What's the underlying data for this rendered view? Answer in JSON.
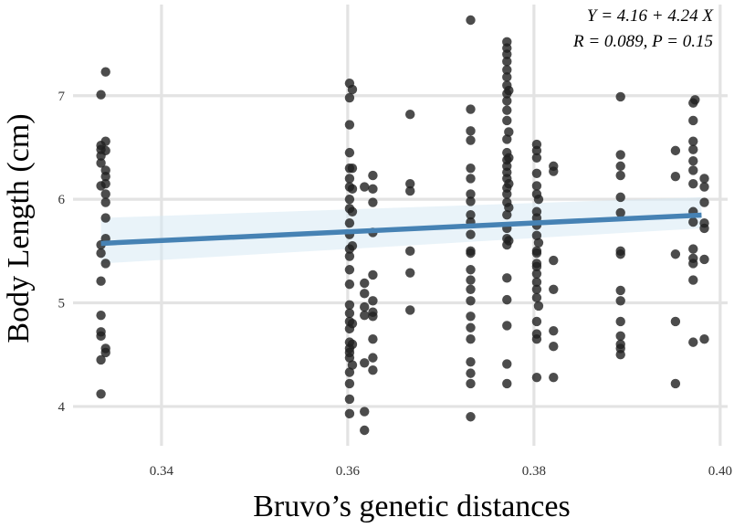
{
  "chart_data": {
    "type": "scatter",
    "title": "",
    "xlabel": "Bruvo’s genetic distances",
    "ylabel": "Body Length (cm)",
    "xlim": [
      0.3305,
      0.4008
    ],
    "ylim": [
      3.62,
      7.88
    ],
    "x_ticks": [
      {
        "value": 0.34,
        "label": "0.34"
      },
      {
        "value": 0.36,
        "label": "0.36"
      },
      {
        "value": 0.38,
        "label": "0.38"
      },
      {
        "value": 0.4,
        "label": "0.40"
      }
    ],
    "y_ticks": [
      {
        "value": 4,
        "label": "4"
      },
      {
        "value": 5,
        "label": "5"
      },
      {
        "value": 6,
        "label": "6"
      },
      {
        "value": 7,
        "label": "7"
      }
    ],
    "grid": true,
    "annotation_lines": [
      "Y = 4.16  + 4.24  X",
      "R = 0.089,  P = 0.15"
    ],
    "regression": {
      "intercept": 4.16,
      "slope": 4.24,
      "x_range": [
        0.3335,
        0.398
      ],
      "ci_left": [
        5.38,
        5.82
      ],
      "ci_right": [
        5.72,
        6.02
      ],
      "color": "#4682b4",
      "band_color": "#d7e9f4"
    },
    "point_color": "#1f1f1f",
    "points": [
      [
        0.3335,
        4.12
      ],
      [
        0.3335,
        4.45
      ],
      [
        0.3335,
        4.68
      ],
      [
        0.3335,
        4.72
      ],
      [
        0.3335,
        4.88
      ],
      [
        0.3335,
        5.21
      ],
      [
        0.3335,
        5.48
      ],
      [
        0.3335,
        5.56
      ],
      [
        0.3335,
        6.13
      ],
      [
        0.3335,
        6.35
      ],
      [
        0.3335,
        6.42
      ],
      [
        0.3335,
        6.48
      ],
      [
        0.3335,
        6.52
      ],
      [
        0.3335,
        7.01
      ],
      [
        0.334,
        4.52
      ],
      [
        0.334,
        4.56
      ],
      [
        0.334,
        5.38
      ],
      [
        0.334,
        5.62
      ],
      [
        0.334,
        5.82
      ],
      [
        0.334,
        5.97
      ],
      [
        0.334,
        6.05
      ],
      [
        0.334,
        6.15
      ],
      [
        0.334,
        6.22
      ],
      [
        0.334,
        6.28
      ],
      [
        0.334,
        6.47
      ],
      [
        0.334,
        6.56
      ],
      [
        0.334,
        7.23
      ],
      [
        0.3602,
        3.93
      ],
      [
        0.3602,
        4.07
      ],
      [
        0.3602,
        4.22
      ],
      [
        0.3602,
        4.33
      ],
      [
        0.3602,
        4.47
      ],
      [
        0.3602,
        4.52
      ],
      [
        0.3602,
        4.56
      ],
      [
        0.3602,
        4.62
      ],
      [
        0.3602,
        4.75
      ],
      [
        0.3602,
        4.82
      ],
      [
        0.3602,
        4.9
      ],
      [
        0.3602,
        4.98
      ],
      [
        0.3602,
        5.18
      ],
      [
        0.3602,
        5.32
      ],
      [
        0.3602,
        5.45
      ],
      [
        0.3602,
        5.52
      ],
      [
        0.3602,
        5.66
      ],
      [
        0.3602,
        5.77
      ],
      [
        0.3602,
        5.91
      ],
      [
        0.3602,
        6.0
      ],
      [
        0.3602,
        6.12
      ],
      [
        0.3602,
        6.2
      ],
      [
        0.3602,
        6.3
      ],
      [
        0.3602,
        6.45
      ],
      [
        0.3602,
        6.72
      ],
      [
        0.3602,
        6.98
      ],
      [
        0.3602,
        7.12
      ],
      [
        0.3605,
        4.4
      ],
      [
        0.3605,
        4.6
      ],
      [
        0.3605,
        4.8
      ],
      [
        0.3605,
        5.55
      ],
      [
        0.3605,
        5.88
      ],
      [
        0.3605,
        6.1
      ],
      [
        0.3605,
        6.3
      ],
      [
        0.3605,
        7.06
      ],
      [
        0.3618,
        3.77
      ],
      [
        0.3618,
        3.95
      ],
      [
        0.3618,
        4.42
      ],
      [
        0.3618,
        4.88
      ],
      [
        0.3618,
        4.96
      ],
      [
        0.3618,
        5.09
      ],
      [
        0.3618,
        5.19
      ],
      [
        0.3618,
        6.12
      ],
      [
        0.3627,
        4.35
      ],
      [
        0.3627,
        4.47
      ],
      [
        0.3627,
        4.65
      ],
      [
        0.3627,
        4.87
      ],
      [
        0.3627,
        4.91
      ],
      [
        0.3627,
        5.02
      ],
      [
        0.3627,
        5.27
      ],
      [
        0.3627,
        5.68
      ],
      [
        0.3627,
        5.97
      ],
      [
        0.3627,
        6.1
      ],
      [
        0.3627,
        6.23
      ],
      [
        0.3667,
        4.93
      ],
      [
        0.3667,
        5.29
      ],
      [
        0.3667,
        5.5
      ],
      [
        0.3667,
        6.08
      ],
      [
        0.3667,
        6.15
      ],
      [
        0.3667,
        6.82
      ],
      [
        0.3732,
        3.9
      ],
      [
        0.3732,
        4.22
      ],
      [
        0.3732,
        4.32
      ],
      [
        0.3732,
        4.43
      ],
      [
        0.3732,
        4.65
      ],
      [
        0.3732,
        4.76
      ],
      [
        0.3732,
        4.87
      ],
      [
        0.3732,
        5.02
      ],
      [
        0.3732,
        5.13
      ],
      [
        0.3732,
        5.22
      ],
      [
        0.3732,
        5.32
      ],
      [
        0.3732,
        5.48
      ],
      [
        0.3732,
        5.5
      ],
      [
        0.3732,
        5.66
      ],
      [
        0.3732,
        5.78
      ],
      [
        0.3732,
        5.85
      ],
      [
        0.3732,
        5.98
      ],
      [
        0.3732,
        6.05
      ],
      [
        0.3732,
        6.2
      ],
      [
        0.3732,
        6.3
      ],
      [
        0.3732,
        6.57
      ],
      [
        0.3732,
        6.66
      ],
      [
        0.3732,
        6.87
      ],
      [
        0.3732,
        7.73
      ],
      [
        0.3771,
        4.22
      ],
      [
        0.3771,
        4.41
      ],
      [
        0.3771,
        4.78
      ],
      [
        0.3771,
        5.03
      ],
      [
        0.3771,
        5.24
      ],
      [
        0.3771,
        5.56
      ],
      [
        0.3771,
        5.62
      ],
      [
        0.3771,
        5.72
      ],
      [
        0.3771,
        5.85
      ],
      [
        0.3771,
        5.97
      ],
      [
        0.3771,
        6.05
      ],
      [
        0.3771,
        6.11
      ],
      [
        0.3771,
        6.2
      ],
      [
        0.3771,
        6.26
      ],
      [
        0.3771,
        6.32
      ],
      [
        0.3771,
        6.38
      ],
      [
        0.3771,
        6.45
      ],
      [
        0.3771,
        6.58
      ],
      [
        0.3771,
        6.76
      ],
      [
        0.3771,
        6.86
      ],
      [
        0.3771,
        6.95
      ],
      [
        0.3771,
        7.02
      ],
      [
        0.3771,
        7.1
      ],
      [
        0.3771,
        7.18
      ],
      [
        0.3771,
        7.25
      ],
      [
        0.3771,
        7.33
      ],
      [
        0.3771,
        7.4
      ],
      [
        0.3771,
        7.46
      ],
      [
        0.3771,
        7.52
      ],
      [
        0.3773,
        5.6
      ],
      [
        0.3773,
        5.92
      ],
      [
        0.3773,
        6.15
      ],
      [
        0.3773,
        6.4
      ],
      [
        0.3773,
        6.65
      ],
      [
        0.3773,
        7.05
      ],
      [
        0.3803,
        4.28
      ],
      [
        0.3803,
        4.65
      ],
      [
        0.3803,
        4.7
      ],
      [
        0.3803,
        4.82
      ],
      [
        0.3803,
        5.05
      ],
      [
        0.3803,
        5.13
      ],
      [
        0.3803,
        5.2
      ],
      [
        0.3803,
        5.28
      ],
      [
        0.3803,
        5.35
      ],
      [
        0.3803,
        5.38
      ],
      [
        0.3803,
        5.48
      ],
      [
        0.3803,
        5.5
      ],
      [
        0.3803,
        5.65
      ],
      [
        0.3803,
        5.75
      ],
      [
        0.3803,
        5.82
      ],
      [
        0.3803,
        5.88
      ],
      [
        0.3803,
        6.05
      ],
      [
        0.3803,
        6.13
      ],
      [
        0.3803,
        6.25
      ],
      [
        0.3803,
        6.4
      ],
      [
        0.3803,
        6.47
      ],
      [
        0.3803,
        6.53
      ],
      [
        0.3805,
        4.97
      ],
      [
        0.3805,
        5.58
      ],
      [
        0.3805,
        6.0
      ],
      [
        0.3821,
        4.28
      ],
      [
        0.3821,
        4.58
      ],
      [
        0.3821,
        4.73
      ],
      [
        0.3821,
        5.13
      ],
      [
        0.3821,
        5.41
      ],
      [
        0.3821,
        6.27
      ],
      [
        0.3821,
        6.32
      ],
      [
        0.3893,
        4.5
      ],
      [
        0.3893,
        4.56
      ],
      [
        0.3893,
        4.6
      ],
      [
        0.3893,
        4.68
      ],
      [
        0.3893,
        4.82
      ],
      [
        0.3893,
        5.02
      ],
      [
        0.3893,
        5.12
      ],
      [
        0.3893,
        5.47
      ],
      [
        0.3893,
        5.5
      ],
      [
        0.3893,
        5.87
      ],
      [
        0.3893,
        6.02
      ],
      [
        0.3893,
        6.23
      ],
      [
        0.3893,
        6.32
      ],
      [
        0.3893,
        6.43
      ],
      [
        0.3893,
        6.99
      ],
      [
        0.3952,
        4.22
      ],
      [
        0.3952,
        4.82
      ],
      [
        0.3952,
        5.47
      ],
      [
        0.3952,
        6.22
      ],
      [
        0.3952,
        6.47
      ],
      [
        0.3971,
        4.62
      ],
      [
        0.3971,
        5.22
      ],
      [
        0.3971,
        5.38
      ],
      [
        0.3971,
        5.43
      ],
      [
        0.3971,
        5.52
      ],
      [
        0.3971,
        5.78
      ],
      [
        0.3971,
        5.88
      ],
      [
        0.3971,
        6.15
      ],
      [
        0.3971,
        6.28
      ],
      [
        0.3971,
        6.37
      ],
      [
        0.3971,
        6.48
      ],
      [
        0.3971,
        6.56
      ],
      [
        0.3971,
        6.76
      ],
      [
        0.3971,
        6.93
      ],
      [
        0.3973,
        6.96
      ],
      [
        0.3983,
        4.65
      ],
      [
        0.3983,
        5.42
      ],
      [
        0.3983,
        5.72
      ],
      [
        0.3983,
        5.77
      ],
      [
        0.3983,
        5.97
      ],
      [
        0.3983,
        6.12
      ],
      [
        0.3983,
        6.2
      ]
    ]
  }
}
